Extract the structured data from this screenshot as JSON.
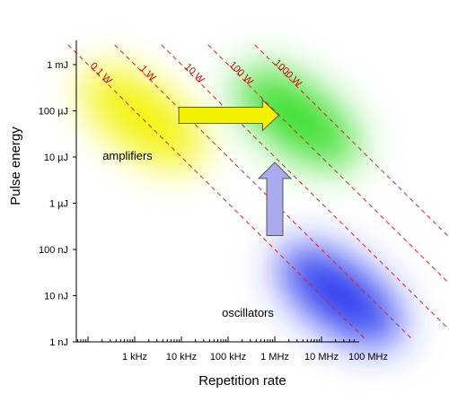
{
  "chart_data": {
    "type": "scatter",
    "xlabel": "Repetition rate",
    "ylabel": "Pulse energy",
    "x_scale": "log",
    "y_scale": "log",
    "xlim_hz": [
      20,
      250000000
    ],
    "ylim_j": [
      1e-09,
      0.0015
    ],
    "x_ticks": [
      {
        "label": "1 kHz",
        "value": 1000
      },
      {
        "label": "10 kHz",
        "value": 10000
      },
      {
        "label": "100 kHz",
        "value": 100000
      },
      {
        "label": "1 MHz",
        "value": 1000000
      },
      {
        "label": "10 MHz",
        "value": 10000000
      },
      {
        "label": "100 MHz",
        "value": 100000000
      }
    ],
    "y_ticks": [
      {
        "label": "1 mJ",
        "value": 0.001
      },
      {
        "label": "100 µJ",
        "value": 0.0001
      },
      {
        "label": "10 µJ",
        "value": 1e-05
      },
      {
        "label": "1 µJ",
        "value": 1e-06
      },
      {
        "label": "100 nJ",
        "value": 1e-07
      },
      {
        "label": "10 nJ",
        "value": 1e-08
      },
      {
        "label": "1 nJ",
        "value": 1e-09
      }
    ],
    "power_lines": [
      {
        "label": "0.1 W",
        "watts": 0.1
      },
      {
        "label": "1 W",
        "watts": 1
      },
      {
        "label": "10 W",
        "watts": 10
      },
      {
        "label": "100 W",
        "watts": 100
      },
      {
        "label": "1000 W",
        "watts": 1000
      }
    ],
    "regions": [
      {
        "label": "amplifiers",
        "color": "#f2f200",
        "rate_hz": 1500,
        "energy_j": 7e-05
      },
      {
        "label": "",
        "color": "#33dd22",
        "rate_hz": 3000000,
        "energy_j": 7e-05
      },
      {
        "label": "oscillators",
        "color": "#2233ee",
        "rate_hz": 25000000,
        "energy_j": 1e-08
      }
    ],
    "arrows": [
      {
        "direction": "right",
        "color": "#f2f200",
        "from_rate_hz": 1500,
        "to_rate_hz": 500000,
        "energy_j": 8e-05
      },
      {
        "direction": "up",
        "color": "#aaaaee",
        "rate_hz": 1000000,
        "from_energy_j": 2e-07,
        "to_energy_j": 1.5e-05
      }
    ]
  },
  "colors": {
    "power_line": "#dd2222",
    "axis": "#000000",
    "arrow_stroke": "#555555"
  }
}
